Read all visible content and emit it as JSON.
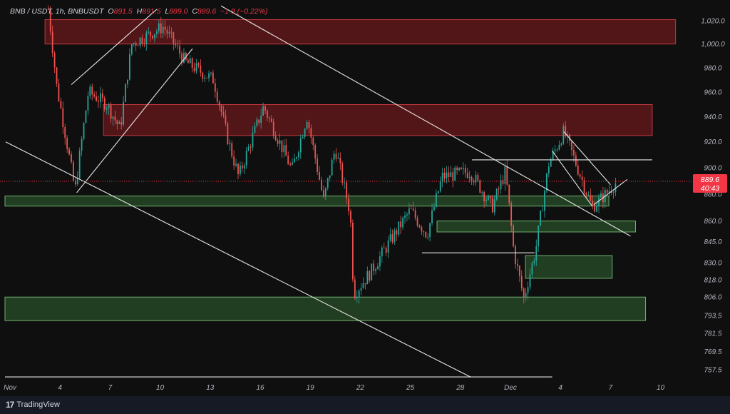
{
  "legend": {
    "symbol": "BNB / USDT, 1h, BNBUSDT",
    "o_label": "O",
    "o": "891.5",
    "h_label": "H",
    "h": "891.5",
    "l_label": "L",
    "l": "889.0",
    "c_label": "C",
    "c": "889.6",
    "change": "−1.9 (−0.22%)"
  },
  "price_tag": {
    "price": "889.6",
    "countdown": "40:43"
  },
  "colors": {
    "background": "#0f0f0f",
    "up": "#26a69a",
    "down": "#ef5350",
    "supply_zone": "#8b1e22",
    "demand_zone": "#2e5e2e",
    "trendline": "#e6e6e6",
    "price_line": "#f23645"
  },
  "footer": {
    "brand": "TradingView",
    "logo_icon": "tradingview-logo-icon"
  },
  "chart_data": {
    "type": "candlestick",
    "title": "BNB / USDT, 1h, BNBUSDT",
    "y_scale": "log",
    "ylim": [
      750,
      1035
    ],
    "y_ticks": [
      "1,020.0",
      "1,000.0",
      "980.0",
      "960.0",
      "940.0",
      "920.0",
      "900.0",
      "880.0",
      "860.0",
      "845.0",
      "830.0",
      "818.0",
      "806.0",
      "793.5",
      "781.5",
      "769.5",
      "757.5"
    ],
    "y_tick_values": [
      1020,
      1000,
      980,
      960,
      940,
      920,
      900,
      880,
      860,
      845,
      830,
      818,
      806,
      793.5,
      781.5,
      769.5,
      757.5
    ],
    "x_ticks": [
      "Nov",
      "4",
      "7",
      "10",
      "13",
      "16",
      "19",
      "22",
      "25",
      "28",
      "Dec",
      "4",
      "7",
      "10"
    ],
    "x_tick_days": [
      1,
      4,
      7,
      10,
      13,
      16,
      19,
      22,
      25,
      28,
      31,
      34,
      37,
      40
    ],
    "x_unit": "day (Nov 1 = 1, Dec 1 = 31)",
    "price_path": [
      [
        3.3,
        1030
      ],
      [
        3.8,
        965
      ],
      [
        4.9,
        882
      ],
      [
        5.7,
        960
      ],
      [
        6.8,
        950
      ],
      [
        7.6,
        930
      ],
      [
        8.3,
        1000
      ],
      [
        10.2,
        1015
      ],
      [
        11.5,
        985
      ],
      [
        13.2,
        970
      ],
      [
        14.1,
        920
      ],
      [
        14.7,
        893
      ],
      [
        16.2,
        948
      ],
      [
        17.9,
        898
      ],
      [
        18.8,
        940
      ],
      [
        19.8,
        875
      ],
      [
        20.5,
        915
      ],
      [
        21.4,
        865
      ],
      [
        21.6,
        808
      ],
      [
        22.6,
        823
      ],
      [
        24.3,
        855
      ],
      [
        25.0,
        868
      ],
      [
        26.0,
        850
      ],
      [
        26.9,
        893
      ],
      [
        28.6,
        897
      ],
      [
        29.9,
        870
      ],
      [
        30.7,
        897
      ],
      [
        31.2,
        838
      ],
      [
        31.8,
        805
      ],
      [
        32.5,
        838
      ],
      [
        33.3,
        903
      ],
      [
        34.2,
        928
      ],
      [
        35.9,
        870
      ],
      [
        36.7,
        880
      ],
      [
        37.4,
        889.6
      ]
    ],
    "zones": [
      {
        "kind": "supply",
        "from_day": 3.1,
        "to_day": 40.9,
        "low": 1000,
        "high": 1021
      },
      {
        "kind": "supply",
        "from_day": 6.6,
        "to_day": 39.5,
        "low": 925,
        "high": 949.7
      },
      {
        "kind": "demand",
        "from_day": 0.7,
        "to_day": 36.9,
        "low": 871,
        "high": 878.5
      },
      {
        "kind": "demand",
        "from_day": 26.6,
        "to_day": 38.5,
        "low": 852,
        "high": 860
      },
      {
        "kind": "demand",
        "from_day": 31.9,
        "to_day": 37.1,
        "low": 819,
        "high": 835
      },
      {
        "kind": "demand",
        "from_day": 0.7,
        "to_day": 39.1,
        "low": 790,
        "high": 806
      }
    ],
    "trendlines": [
      [
        [
          0.74,
          920
        ],
        [
          28.6,
          753
        ]
      ],
      [
        [
          13.65,
          1033
        ],
        [
          38.2,
          849
        ]
      ],
      [
        [
          4.68,
          966
        ],
        [
          9.8,
          1030
        ]
      ],
      [
        [
          5.0,
          881
        ],
        [
          11.94,
          996
        ]
      ],
      [
        [
          28.7,
          906
        ],
        [
          39.5,
          906
        ]
      ],
      [
        [
          25.7,
          837
        ],
        [
          32.45,
          837
        ]
      ],
      [
        [
          34.2,
          928
        ],
        [
          37.0,
          887
        ]
      ],
      [
        [
          33.5,
          913
        ],
        [
          35.9,
          871
        ]
      ],
      [
        [
          36.0,
          872
        ],
        [
          38.0,
          891
        ]
      ],
      [
        [
          0.7,
          753
        ],
        [
          33.5,
          753
        ]
      ]
    ],
    "last_price": 889.6,
    "grid": false
  }
}
